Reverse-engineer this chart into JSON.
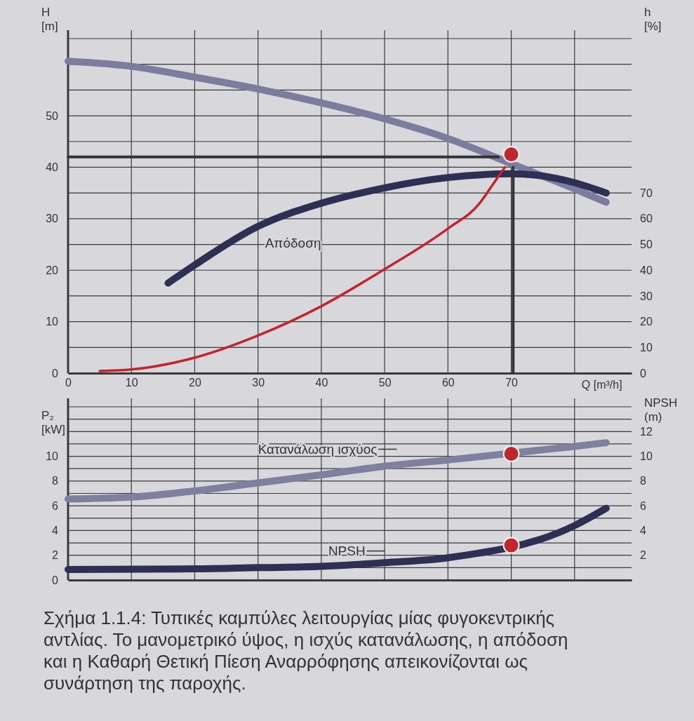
{
  "chart_data": [
    {
      "type": "line",
      "xlabel": "Q  [m³/h]",
      "ylabel": "H\n[m]",
      "y2label": "h\n[%]",
      "xlim": [
        0,
        89
      ],
      "xticks": [
        0,
        10,
        20,
        30,
        40,
        50,
        60,
        70,
        {
          "value": 80,
          "label": null
        }
      ],
      "ylim": [
        0,
        65
      ],
      "yticks": [
        0,
        {
          "value": 5,
          "label": null
        },
        10,
        {
          "value": 15,
          "label": null
        },
        20,
        {
          "value": 25,
          "label": null
        },
        30,
        {
          "value": 35,
          "label": null
        },
        40,
        {
          "value": 45,
          "label": null
        },
        50,
        {
          "value": 55,
          "label": null
        },
        {
          "value": 60,
          "label": null
        },
        {
          "value": 65,
          "label": null
        }
      ],
      "y2lim": [
        0,
        130
      ],
      "y2ticks": [
        0,
        10,
        20,
        30,
        40,
        50,
        60,
        70
      ],
      "grid": true,
      "line_style": "solid",
      "series": [
        {
          "color": "#7c7d9e",
          "x": [
            0,
            10,
            20,
            30,
            40,
            50,
            60,
            70,
            80,
            85
          ],
          "values": [
            60.6,
            59.6,
            57.5,
            55.2,
            52.5,
            49.4,
            45.6,
            40.7,
            35.8,
            33.2
          ]
        },
        {
          "name": "Απόδοση",
          "axis": "y2",
          "color": "#2e2f55",
          "x": [
            15.8,
            20,
            30,
            40,
            50,
            60,
            70,
            80,
            85
          ],
          "values": [
            35,
            42,
            57,
            66,
            72,
            76,
            77.5,
            74,
            70
          ]
        },
        {
          "color": "#c0272d",
          "x": [
            5,
            10,
            20,
            30,
            40,
            50,
            60,
            65,
            67,
            69
          ],
          "values": [
            0.4,
            0.7,
            3,
            7.3,
            13,
            20.2,
            28.1,
            33,
            36.5,
            40
          ]
        },
        {
          "color": "#333338",
          "x": [
            0,
            68
          ],
          "values": [
            42,
            42
          ]
        },
        {
          "color": "#333338",
          "x": [
            70.3,
            70.3
          ],
          "values": [
            40,
            0
          ]
        },
        {
          "type": "scatter",
          "marker": "circle",
          "color": "#c0272d",
          "x": [
            70
          ],
          "values": [
            42.5
          ]
        }
      ]
    },
    {
      "type": "line",
      "ylabel": "P₂\n[kW]",
      "y2label": "NPSH\n(m)",
      "xlim": [
        0,
        89
      ],
      "xticks": [
        0,
        10,
        20,
        30,
        40,
        50,
        60,
        70,
        80
      ],
      "tick_labels": "y",
      "ylim": [
        0,
        14
      ],
      "yticks": [
        0,
        {
          "value": 1,
          "label": null
        },
        2,
        {
          "value": 3,
          "label": null
        },
        4,
        {
          "value": 5,
          "label": null
        },
        6,
        {
          "value": 7,
          "label": null
        },
        8,
        {
          "value": 9,
          "label": null
        },
        10,
        {
          "value": 11,
          "label": null
        },
        {
          "value": 12,
          "label": null
        },
        {
          "value": 13,
          "label": null
        },
        {
          "value": 14,
          "label": null
        }
      ],
      "y2lim": [
        0,
        14
      ],
      "y2ticks": [
        2,
        4,
        6,
        8,
        10,
        12
      ],
      "grid": true,
      "line_style": "solid",
      "annotations": [
        "Σχήμα 1.1.4: Τυπικές καμπύλες λειτουργίας μίας φυγοκεντρικής αντλίας. Το μανομετρικό ύψος, η ισχύς κατανάλωσης, η απόδοση και η Καθαρή Θετική Πίεση Αναρρόφησης απεικονίζονται ως συνάρτηση της παροχής."
      ],
      "series": [
        {
          "name": "Κατανάλωση ισχύος",
          "color": "#7f809f",
          "x": [
            0,
            10,
            20,
            30,
            40,
            50,
            60,
            70,
            80,
            85
          ],
          "values": [
            6.55,
            6.7,
            7.2,
            7.85,
            8.5,
            9.2,
            9.7,
            null,
            10.8,
            11.1
          ]
        },
        {
          "name": "NPSH",
          "axis": "y2",
          "color": "#2e2f55",
          "x": [
            0,
            20,
            30,
            40,
            50,
            60,
            70,
            80,
            85
          ],
          "values": [
            0.85,
            0.9,
            1,
            1.1,
            1.4,
            1.8,
            null,
            4.4,
            5.8
          ]
        },
        {
          "type": "scatter",
          "marker": "circle",
          "color": "#c0272d",
          "x": [
            70
          ],
          "values": [
            10.2
          ]
        },
        {
          "type": "scatter",
          "marker": "circle",
          "axis": "y2",
          "color": "#c0272d",
          "x": [
            70
          ],
          "values": [
            2.8
          ]
        }
      ]
    }
  ]
}
